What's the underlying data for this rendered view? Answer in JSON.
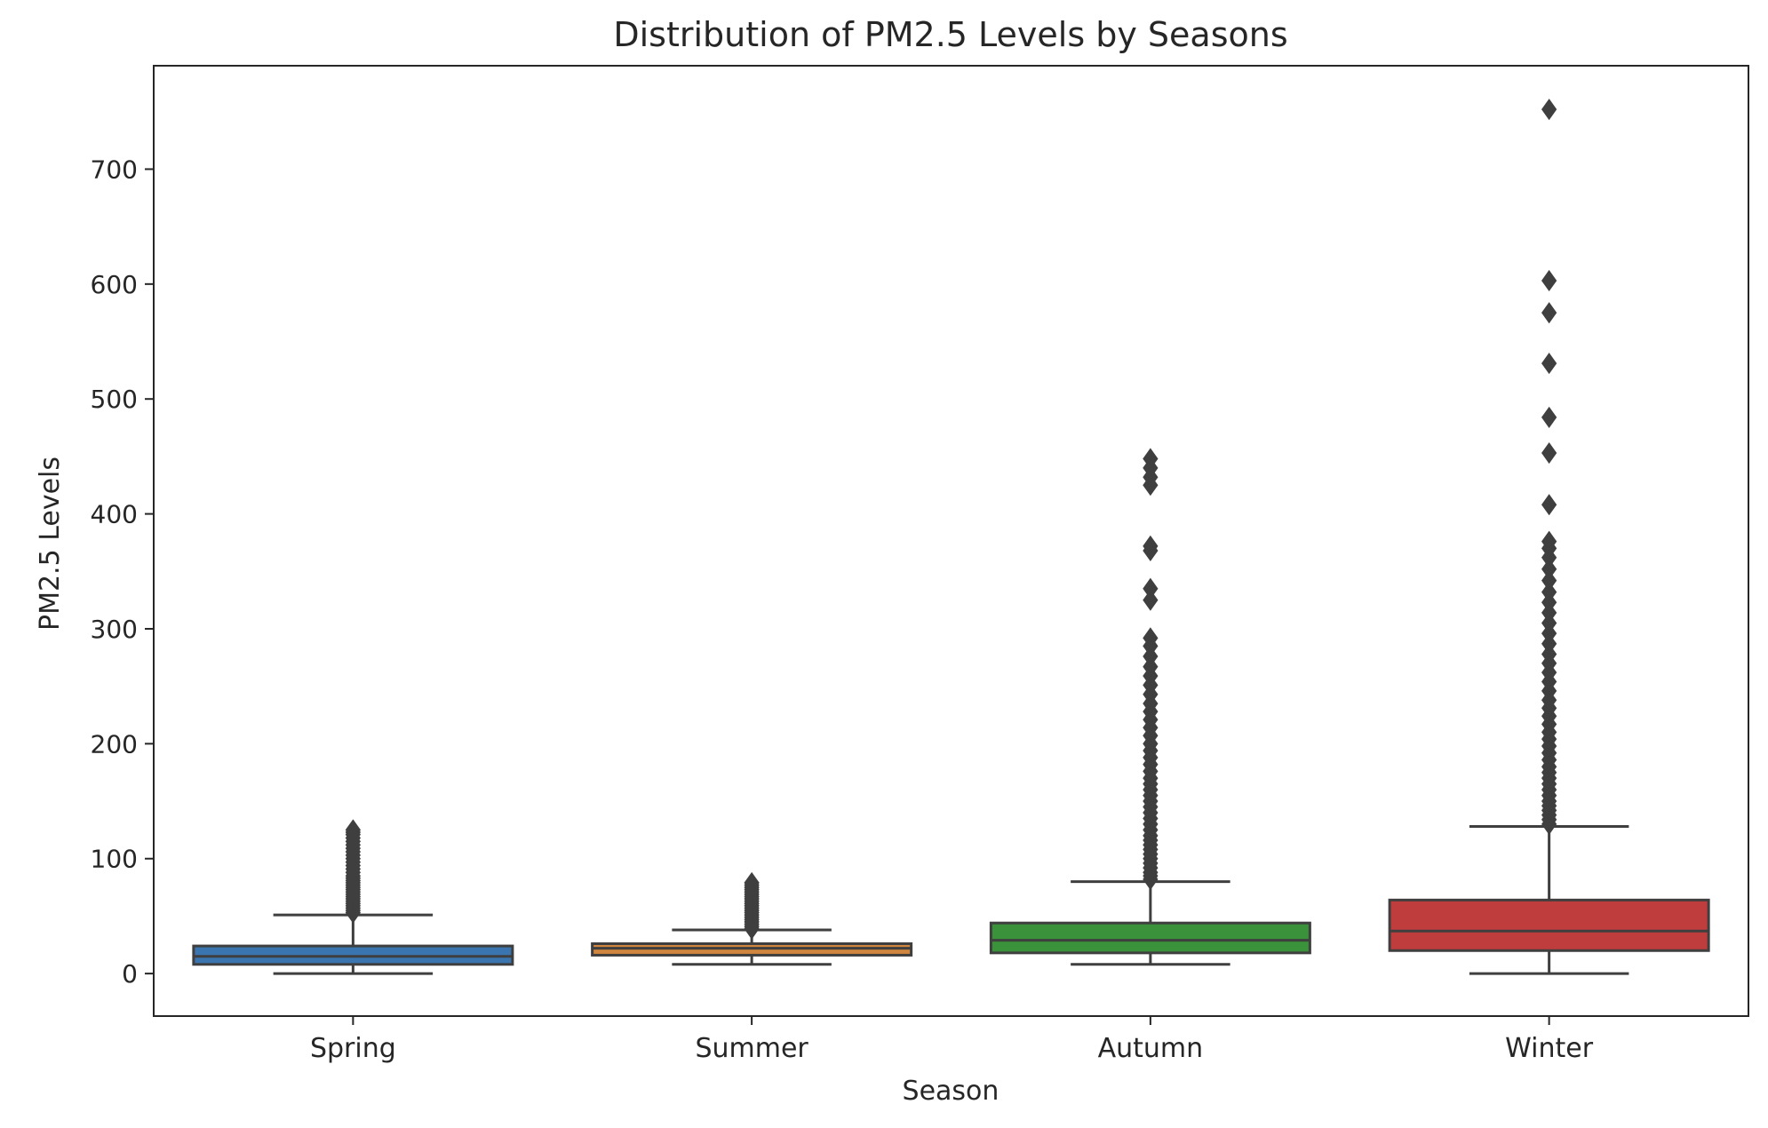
{
  "chart_data": {
    "type": "box",
    "title": "Distribution of PM2.5 Levels by Seasons",
    "xlabel": "Season",
    "ylabel": "PM2.5 Levels",
    "ylim": [
      -37,
      790
    ],
    "yticks": [
      0,
      100,
      200,
      300,
      400,
      500,
      600,
      700
    ],
    "grid": false,
    "categories": [
      "Spring",
      "Summer",
      "Autumn",
      "Winter"
    ],
    "boxes": [
      {
        "category": "Spring",
        "color": "#3a75b0",
        "whisker_low": 0,
        "q1": 8,
        "median": 15,
        "q3": 24,
        "whisker_high": 51,
        "outliers": [
          53,
          55,
          57,
          59,
          61,
          63,
          65,
          67,
          69,
          71,
          73,
          75,
          77,
          79,
          81,
          83,
          85,
          88,
          91,
          94,
          97,
          100,
          103,
          106,
          109,
          112,
          115,
          118,
          121,
          123,
          125
        ]
      },
      {
        "category": "Summer",
        "color": "#d1863f",
        "whisker_low": 8,
        "q1": 16,
        "median": 22,
        "q3": 26,
        "whisker_high": 38,
        "outliers": [
          39,
          41,
          43,
          45,
          47,
          49,
          51,
          53,
          55,
          57,
          59,
          61,
          63,
          65,
          67,
          69,
          71,
          73,
          75,
          77,
          79
        ]
      },
      {
        "category": "Autumn",
        "color": "#3a923a",
        "whisker_low": 8,
        "q1": 18,
        "median": 29,
        "q3": 44,
        "whisker_high": 80,
        "outliers": [
          82,
          85,
          88,
          92,
          96,
          100,
          104,
          108,
          112,
          116,
          120,
          125,
          130,
          135,
          140,
          145,
          150,
          155,
          160,
          165,
          170,
          176,
          182,
          188,
          194,
          200,
          207,
          214,
          221,
          228,
          235,
          243,
          251,
          259,
          267,
          276,
          285,
          292,
          325,
          335,
          368,
          372,
          425,
          432,
          440,
          448
        ]
      },
      {
        "category": "Winter",
        "color": "#c03d3e",
        "whisker_low": 0,
        "q1": 20,
        "median": 37,
        "q3": 64,
        "whisker_high": 128,
        "outliers": [
          130,
          134,
          138,
          142,
          146,
          150,
          155,
          160,
          165,
          170,
          175,
          180,
          186,
          192,
          198,
          204,
          210,
          217,
          224,
          231,
          238,
          246,
          254,
          262,
          270,
          278,
          287,
          296,
          305,
          314,
          323,
          332,
          342,
          352,
          362,
          370,
          376,
          408,
          453,
          484,
          531,
          575,
          603,
          752
        ]
      }
    ]
  }
}
